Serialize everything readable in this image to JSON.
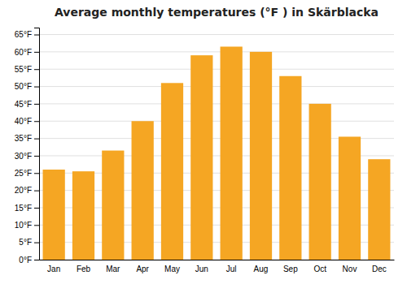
{
  "chart_data": {
    "type": "bar",
    "title": "Average monthly temperatures (°F ) in Skärblacka",
    "categories": [
      "Jan",
      "Feb",
      "Mar",
      "Apr",
      "May",
      "Jun",
      "Jul",
      "Aug",
      "Sep",
      "Oct",
      "Nov",
      "Dec"
    ],
    "values": [
      26,
      25.5,
      31.5,
      40,
      51,
      59,
      61.5,
      60,
      53,
      45,
      35.5,
      29
    ],
    "color": "#F5A623",
    "ylim": [
      0,
      67
    ],
    "yticks": [
      {
        "value": 0,
        "label": "0°F"
      },
      {
        "value": 5,
        "label": "5°F"
      },
      {
        "value": 10,
        "label": "10°F"
      },
      {
        "value": 15,
        "label": "15°F"
      },
      {
        "value": 20,
        "label": "20°F"
      },
      {
        "value": 25,
        "label": "25°F"
      },
      {
        "value": 30,
        "label": "30°F"
      },
      {
        "value": 35,
        "label": "35°F"
      },
      {
        "value": 40,
        "label": "40°F"
      },
      {
        "value": 45,
        "label": "45°F"
      },
      {
        "value": 50,
        "label": "50°F"
      },
      {
        "value": 55,
        "label": "55°F"
      },
      {
        "value": 60,
        "label": "60°F"
      },
      {
        "value": 65,
        "label": "65°F"
      }
    ],
    "grid": true
  }
}
